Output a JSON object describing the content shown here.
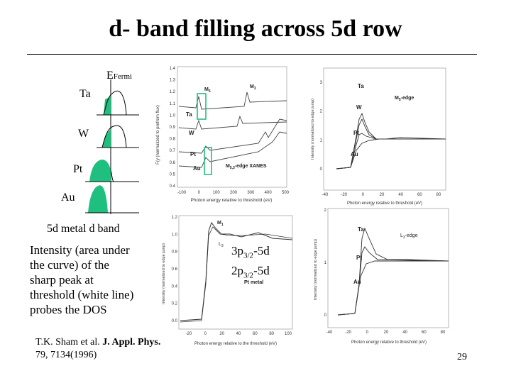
{
  "slide": {
    "title": "d- band filling across 5d row",
    "page_number": "29"
  },
  "left_panel": {
    "efermi_main": "E",
    "efermi_sub": "Fermi",
    "elements": [
      "Ta",
      "W",
      "Pt",
      "Au"
    ],
    "subtitle": "5d metal d band",
    "description_lines": [
      "Intensity (area under",
      "the curve) of the",
      "sharp peak at",
      "threshold (white line)",
      "probes  the DOS"
    ],
    "citation_line1_plain": "T.K. Sham et al. ",
    "citation_line1_bold": "J. Appl. Phys.",
    "citation_line2": "79, 7134(1996)"
  },
  "transitions": {
    "line1_main": "3p",
    "line1_sub": "3/2",
    "line1_rest": "-5d",
    "line2_main": "2p",
    "line2_sub": "3/2",
    "line2_rest": "-5d"
  },
  "plot_m": {
    "ylabel": "F(y (normalized to prefrom flux)",
    "xlabel": "Photon energy relative to threshold (eV)",
    "yticks": [
      "1.4",
      "1.3",
      "1.2",
      "1.1",
      "1.0",
      "0.9",
      "0.8",
      "0.7",
      "0.6",
      "0.5",
      "0.4"
    ],
    "xticks": [
      "-100",
      "0",
      "100",
      "200",
      "300",
      "400",
      "500"
    ],
    "labels": {
      "m5": "M",
      "m5_sub": "5",
      "m3": "M",
      "m3_sub": "3",
      "edge": "M",
      "edge_sub": "5,3",
      "edge_rest": "-edge XANES"
    },
    "curves": [
      "Ta",
      "W",
      "Pt",
      "Au"
    ]
  },
  "plot_m5": {
    "ylabel": "Intensity (normalized to edge jump)",
    "xlabel": "Photon energy relative to threshold (eV)",
    "yticks": [
      "3",
      "2",
      "1",
      "0"
    ],
    "xticks": [
      "-40",
      "-20",
      "0",
      "20",
      "40",
      "60",
      "80"
    ],
    "edge_label": "M",
    "edge_sub": "5",
    "edge_rest": "-edge",
    "curves": [
      "Ta",
      "W",
      "Pt",
      "Au"
    ]
  },
  "plot_pt": {
    "ylabel": "Intensity (normalized to edge jump)",
    "xlabel": "Photon energy relative to the threshold (eV)",
    "yticks": [
      "1.2",
      "1.0",
      "0.8",
      "0.6",
      "0.4",
      "0.2",
      "0.0"
    ],
    "xticks": [
      "-20",
      "0",
      "20",
      "40",
      "60",
      "80",
      "100"
    ],
    "m1": "M",
    "m1_sub": "1",
    "l3": "L",
    "l3_sub": "3",
    "metal": "Pt metal"
  },
  "plot_l3": {
    "ylabel": "Intensity (normalized to edge jump)",
    "xlabel": "Photon energy relative to threshold (eV)",
    "yticks": [
      "2",
      "1",
      "0"
    ],
    "xticks": [
      "-40",
      "-20",
      "0",
      "20",
      "40",
      "60",
      "80"
    ],
    "edge_label": "L",
    "edge_sub": "3",
    "edge_rest": "-edge",
    "curves": [
      "Ta",
      "Pt",
      "Au"
    ]
  },
  "colors": {
    "band_fill": "#1fbf80",
    "highlight": "#1fbf80"
  }
}
